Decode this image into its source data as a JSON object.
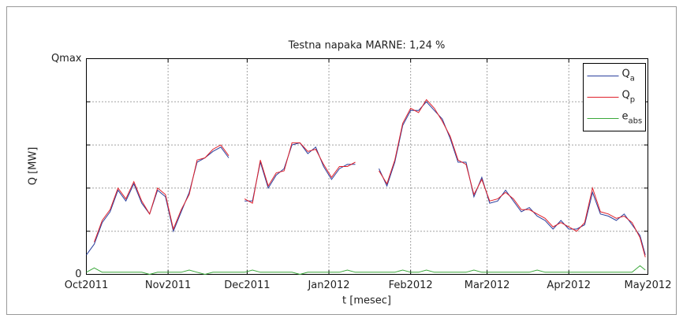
{
  "chart_data": {
    "type": "line",
    "title": "Testna napaka MARNE: 1,24 %",
    "xlabel": "t [mesec]",
    "ylabel": "Q [MW]",
    "xlim": [
      0,
      213
    ],
    "xticks": [
      {
        "value": 0,
        "label": "Oct2011"
      },
      {
        "value": 31,
        "label": "Nov2011"
      },
      {
        "value": 61,
        "label": "Dec2011"
      },
      {
        "value": 92,
        "label": "Jan2012"
      },
      {
        "value": 123,
        "label": "Feb2012"
      },
      {
        "value": 152,
        "label": "Mar2012"
      },
      {
        "value": 183,
        "label": "Apr2012"
      },
      {
        "value": 213,
        "label": "May2012"
      }
    ],
    "ylim": [
      0,
      1
    ],
    "yticks": [
      0,
      {
        "value": 0.2,
        "label": null
      },
      {
        "value": 0.4,
        "label": null
      },
      {
        "value": 0.6,
        "label": null
      },
      {
        "value": 0.8,
        "label": null
      },
      {
        "value": 1,
        "label": "Qmax"
      }
    ],
    "grid": true,
    "legend": "upper right",
    "x": [
      0,
      3,
      6,
      9,
      12,
      15,
      18,
      21,
      24,
      27,
      30,
      33,
      36,
      39,
      42,
      45,
      48,
      51,
      54,
      57,
      60,
      63,
      66,
      69,
      72,
      75,
      78,
      81,
      84,
      87,
      90,
      93,
      96,
      99,
      102,
      105,
      108,
      111,
      114,
      117,
      120,
      123,
      126,
      129,
      132,
      135,
      138,
      141,
      144,
      147,
      150,
      153,
      156,
      159,
      162,
      165,
      168,
      171,
      174,
      177,
      180,
      183,
      186,
      189,
      192,
      195,
      198,
      201,
      204,
      207,
      210,
      212
    ],
    "series": [
      {
        "name": "Qa",
        "color": "#2a3f9d",
        "values": [
          0.09,
          0.14,
          0.24,
          0.29,
          0.39,
          0.34,
          0.42,
          0.33,
          0.28,
          0.39,
          0.36,
          0.2,
          0.29,
          0.38,
          0.52,
          0.54,
          0.57,
          0.59,
          0.54,
          null,
          0.34,
          0.34,
          0.52,
          0.4,
          0.46,
          0.49,
          0.6,
          0.61,
          0.56,
          0.59,
          0.5,
          0.44,
          0.49,
          0.51,
          0.51,
          null,
          null,
          0.49,
          0.41,
          0.52,
          0.69,
          0.76,
          0.76,
          0.8,
          0.76,
          0.72,
          0.63,
          0.52,
          0.52,
          0.36,
          0.45,
          0.33,
          0.34,
          0.39,
          0.34,
          0.29,
          0.31,
          0.27,
          0.25,
          0.21,
          0.25,
          0.21,
          0.21,
          0.23,
          0.38,
          0.28,
          0.27,
          0.25,
          0.28,
          0.23,
          0.18,
          0.09
        ]
      },
      {
        "name": "Qp",
        "color": "#e0202a",
        "values": [
          null,
          0.15,
          0.25,
          0.3,
          0.4,
          0.35,
          0.43,
          0.34,
          0.28,
          0.4,
          0.37,
          0.21,
          0.3,
          0.37,
          0.53,
          0.54,
          0.58,
          0.6,
          0.55,
          null,
          0.35,
          0.33,
          0.53,
          0.41,
          0.47,
          0.48,
          0.61,
          0.61,
          0.57,
          0.58,
          0.51,
          0.45,
          0.5,
          0.5,
          0.52,
          null,
          null,
          0.48,
          0.42,
          0.53,
          0.7,
          0.77,
          0.75,
          0.81,
          0.77,
          0.71,
          0.64,
          0.53,
          0.51,
          0.37,
          0.44,
          0.34,
          0.35,
          0.38,
          0.35,
          0.3,
          0.3,
          0.28,
          0.26,
          0.22,
          0.24,
          0.22,
          0.2,
          0.24,
          0.4,
          0.29,
          0.28,
          0.26,
          0.27,
          0.24,
          0.17,
          0.08
        ]
      },
      {
        "name": "eabs",
        "color": "#3aa83a",
        "values": [
          0.01,
          0.03,
          0.01,
          0.01,
          0.01,
          0.01,
          0.01,
          0.01,
          0.0,
          0.01,
          0.01,
          0.01,
          0.01,
          0.02,
          0.01,
          0.0,
          0.01,
          0.01,
          0.01,
          0.01,
          0.01,
          0.02,
          0.01,
          0.01,
          0.01,
          0.01,
          0.01,
          0.0,
          0.01,
          0.01,
          0.01,
          0.01,
          0.01,
          0.02,
          0.01,
          0.01,
          0.01,
          0.01,
          0.01,
          0.01,
          0.02,
          0.01,
          0.01,
          0.02,
          0.01,
          0.01,
          0.01,
          0.01,
          0.01,
          0.02,
          0.01,
          0.01,
          0.01,
          0.01,
          0.01,
          0.01,
          0.01,
          0.02,
          0.01,
          0.01,
          0.01,
          0.01,
          0.01,
          0.01,
          0.01,
          0.01,
          0.01,
          0.01,
          0.01,
          0.01,
          0.04,
          0.02
        ]
      }
    ]
  }
}
